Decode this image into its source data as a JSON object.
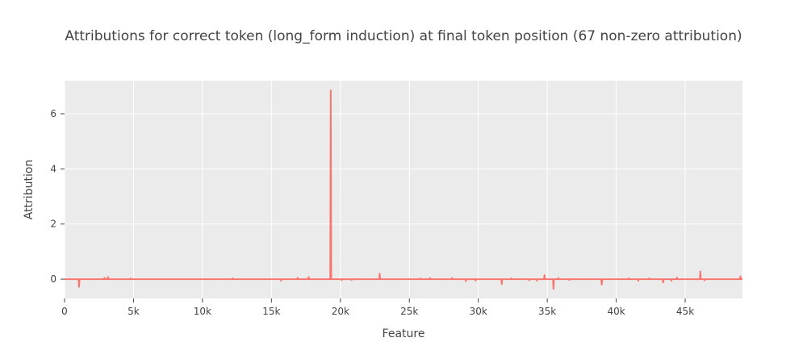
{
  "chart_data": {
    "type": "line",
    "title": "Attributions for correct token (long_form induction) at final token position (67 non-zero attribution)",
    "xlabel": "Feature",
    "ylabel": "Attribution",
    "xlim": [
      0,
      49152
    ],
    "ylim": [
      -0.7,
      7.2
    ],
    "x_ticks": [
      0,
      5000,
      10000,
      15000,
      20000,
      25000,
      30000,
      35000,
      40000,
      45000
    ],
    "x_tick_labels": [
      "0",
      "5k",
      "10k",
      "15k",
      "20k",
      "25k",
      "30k",
      "35k",
      "40k",
      "45k"
    ],
    "y_ticks": [
      0,
      2,
      4,
      6
    ],
    "y_tick_labels": [
      "0",
      "2",
      "4",
      "6"
    ],
    "grid": true,
    "legend": "none",
    "colors": {
      "line": "#f8766d",
      "plot_bg": "#ebebeb",
      "grid": "#ffffff",
      "text": "#444444"
    },
    "points": [
      [
        1050,
        -0.28
      ],
      [
        2900,
        0.05
      ],
      [
        3150,
        0.08
      ],
      [
        4800,
        0.03
      ],
      [
        12200,
        0.03
      ],
      [
        15700,
        -0.05
      ],
      [
        16900,
        0.05
      ],
      [
        17700,
        0.08
      ],
      [
        19300,
        6.85
      ],
      [
        20100,
        -0.04
      ],
      [
        20800,
        -0.03
      ],
      [
        22850,
        0.2
      ],
      [
        25800,
        0.03
      ],
      [
        26500,
        0.04
      ],
      [
        28100,
        0.04
      ],
      [
        29100,
        -0.07
      ],
      [
        29800,
        -0.05
      ],
      [
        31700,
        -0.18
      ],
      [
        32400,
        0.03
      ],
      [
        33700,
        -0.04
      ],
      [
        34250,
        -0.05
      ],
      [
        34800,
        0.15
      ],
      [
        35450,
        -0.35
      ],
      [
        35800,
        0.04
      ],
      [
        36600,
        -0.03
      ],
      [
        38950,
        -0.2
      ],
      [
        40900,
        0.03
      ],
      [
        41600,
        -0.06
      ],
      [
        42400,
        0.03
      ],
      [
        43400,
        -0.12
      ],
      [
        44000,
        -0.06
      ],
      [
        44400,
        0.06
      ],
      [
        46100,
        0.28
      ],
      [
        46400,
        -0.04
      ],
      [
        49000,
        0.1
      ]
    ]
  }
}
